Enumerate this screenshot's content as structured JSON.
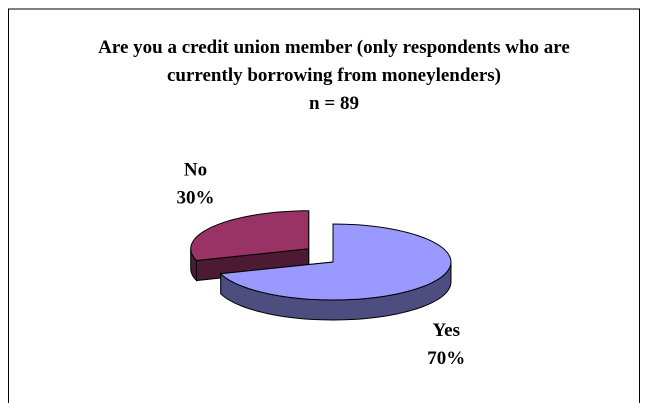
{
  "chart_data": {
    "type": "pie3d",
    "title": "Are you a credit union member (only respondents who are currently borrowing from moneylenders)",
    "subtitle": "n = 89",
    "categories": [
      "Yes",
      "No"
    ],
    "values": [
      70,
      30
    ],
    "value_labels": [
      "70%",
      "30%"
    ],
    "colors": [
      "#9999ff",
      "#993366"
    ],
    "side_colors": [
      "#4d4d80",
      "#4d1a33"
    ]
  }
}
